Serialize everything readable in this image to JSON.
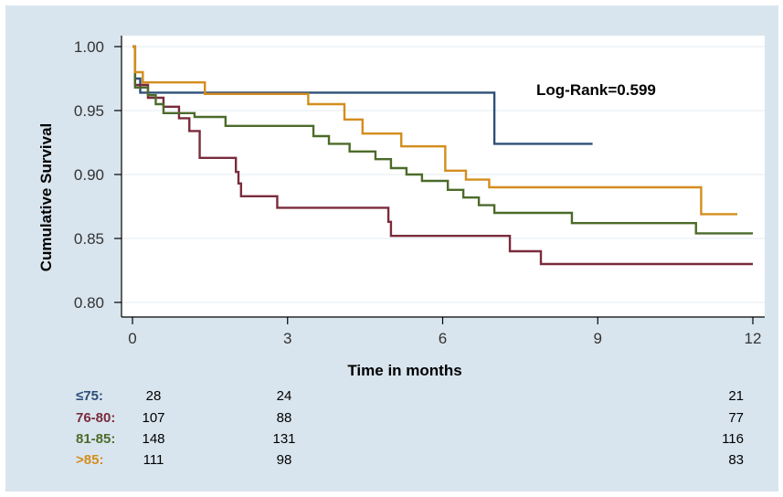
{
  "chart_data": {
    "type": "line",
    "subtype": "kaplan-meier step",
    "title": "",
    "xlabel": "Time in months",
    "ylabel": "Cumulative  Survival",
    "xlim": [
      0,
      12
    ],
    "ylim": [
      0.8,
      1.0
    ],
    "xticks": [
      "0",
      "3",
      "6",
      "9",
      "12"
    ],
    "yticks": [
      "0.80",
      "0.85",
      "0.90",
      "0.95",
      "1.00"
    ],
    "grid": "horizontal",
    "annotation": "Log-Rank=0.599",
    "series": [
      {
        "name": "≤75:",
        "color": "#2c4f78",
        "points": [
          [
            0,
            1.0
          ],
          [
            0.05,
            0.975
          ],
          [
            0.15,
            0.964
          ],
          [
            7.0,
            0.964
          ],
          [
            7.0,
            0.924
          ],
          [
            8.9,
            0.924
          ]
        ],
        "at_risk": [
          "28",
          "24",
          "21"
        ]
      },
      {
        "name": "76-80:",
        "color": "#7a2b3b",
        "points": [
          [
            0,
            1.0
          ],
          [
            0.05,
            0.97
          ],
          [
            0.3,
            0.96
          ],
          [
            0.6,
            0.953
          ],
          [
            0.9,
            0.944
          ],
          [
            1.1,
            0.934
          ],
          [
            1.3,
            0.923
          ],
          [
            1.3,
            0.913
          ],
          [
            1.8,
            0.913
          ],
          [
            2.0,
            0.902
          ],
          [
            2.05,
            0.893
          ],
          [
            2.1,
            0.883
          ],
          [
            2.7,
            0.883
          ],
          [
            2.8,
            0.874
          ],
          [
            4.8,
            0.874
          ],
          [
            4.95,
            0.863
          ],
          [
            5.0,
            0.852
          ],
          [
            7.3,
            0.852
          ],
          [
            7.3,
            0.84
          ],
          [
            7.9,
            0.84
          ],
          [
            7.9,
            0.83
          ],
          [
            12.0,
            0.83
          ]
        ],
        "at_risk": [
          "107",
          "88",
          "77"
        ]
      },
      {
        "name": "81-85:",
        "color": "#4c6b2a",
        "points": [
          [
            0,
            1.0
          ],
          [
            0.05,
            0.968
          ],
          [
            0.3,
            0.962
          ],
          [
            0.45,
            0.955
          ],
          [
            0.6,
            0.948
          ],
          [
            1.2,
            0.945
          ],
          [
            1.8,
            0.938
          ],
          [
            3.0,
            0.938
          ],
          [
            3.5,
            0.93
          ],
          [
            3.8,
            0.924
          ],
          [
            4.2,
            0.918
          ],
          [
            4.7,
            0.912
          ],
          [
            5.0,
            0.905
          ],
          [
            5.3,
            0.9
          ],
          [
            5.6,
            0.895
          ],
          [
            6.1,
            0.888
          ],
          [
            6.4,
            0.882
          ],
          [
            6.7,
            0.876
          ],
          [
            7.0,
            0.87
          ],
          [
            8.4,
            0.87
          ],
          [
            8.5,
            0.862
          ],
          [
            10.8,
            0.862
          ],
          [
            10.9,
            0.854
          ],
          [
            12.0,
            0.854
          ]
        ],
        "at_risk": [
          "148",
          "131",
          "116"
        ]
      },
      {
        "name": ">85:",
        "color": "#d48d1d",
        "points": [
          [
            0,
            1.0
          ],
          [
            0.05,
            0.98
          ],
          [
            0.2,
            0.972
          ],
          [
            1.0,
            0.972
          ],
          [
            1.4,
            0.963
          ],
          [
            3.4,
            0.963
          ],
          [
            3.4,
            0.955
          ],
          [
            4.1,
            0.955
          ],
          [
            4.1,
            0.943
          ],
          [
            4.4,
            0.943
          ],
          [
            4.45,
            0.932
          ],
          [
            5.1,
            0.932
          ],
          [
            5.2,
            0.922
          ],
          [
            6.0,
            0.922
          ],
          [
            6.05,
            0.903
          ],
          [
            6.45,
            0.903
          ],
          [
            6.45,
            0.896
          ],
          [
            6.85,
            0.896
          ],
          [
            6.9,
            0.89
          ],
          [
            10.95,
            0.89
          ],
          [
            11.0,
            0.869
          ],
          [
            11.7,
            0.869
          ]
        ],
        "at_risk": [
          "111",
          "98",
          "83"
        ]
      }
    ]
  }
}
